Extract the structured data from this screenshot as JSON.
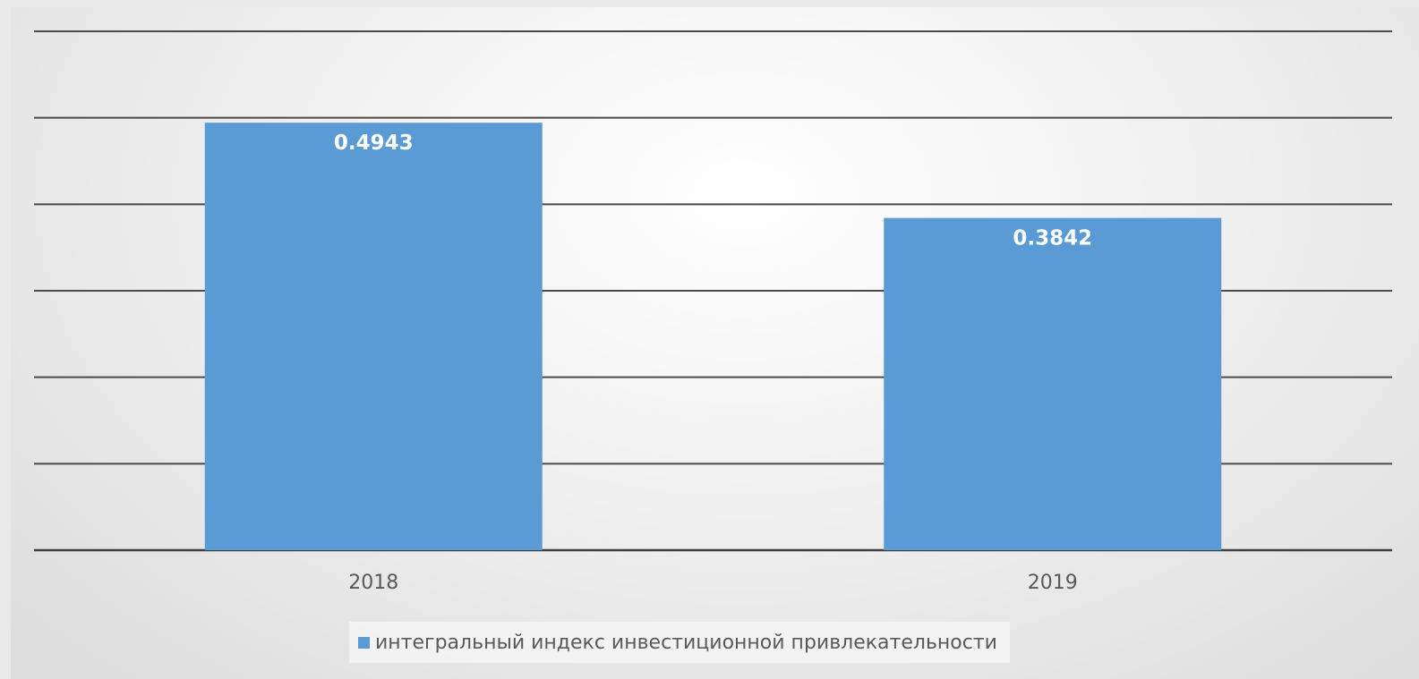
{
  "chart_data": {
    "type": "bar",
    "categories": [
      "2018",
      "2019"
    ],
    "series": [
      {
        "name": "интегральный индекс инвестиционной привлекательности",
        "values": [
          0.4943,
          0.3842
        ],
        "color": "#5b9bd5"
      }
    ],
    "data_labels": [
      "0.4943",
      "0.3842"
    ],
    "ylim": [
      0,
      0.6
    ],
    "grid": true,
    "y_tick_labels_shown": false,
    "legend_position": "bottom"
  }
}
